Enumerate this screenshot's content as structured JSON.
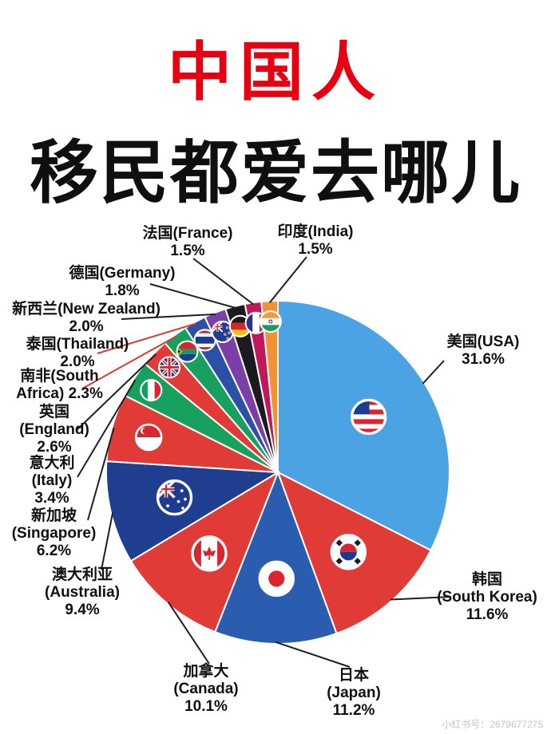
{
  "header": {
    "title_line1": "中国人",
    "title_line2": "移民都爱去哪儿",
    "title_color": "#e60012"
  },
  "watermark": "小红书号：2679677275",
  "chart_data": {
    "type": "pie",
    "title": "中国人移民都爱去哪儿",
    "unit": "%",
    "start_angle_deg": -90,
    "direction": "clockwise",
    "legend_position": "none",
    "slices": [
      {
        "id": "usa",
        "name_zh": "美国",
        "name_en": "USA",
        "value": 31.6,
        "color": "#4BA3E3",
        "flag": "usa",
        "label_text": "美国(USA)\n31.6%"
      },
      {
        "id": "south-korea",
        "name_zh": "韩国",
        "name_en": "South Korea",
        "value": 11.6,
        "color": "#E03B36",
        "flag": "kor",
        "label_text": "韩国\n(South Korea)\n11.6%"
      },
      {
        "id": "japan",
        "name_zh": "日本",
        "name_en": "Japan",
        "value": 11.2,
        "color": "#2A5DB0",
        "flag": "jpn",
        "label_text": "日本\n(Japan)\n11.2%"
      },
      {
        "id": "canada",
        "name_zh": "加拿大",
        "name_en": "Canada",
        "value": 10.1,
        "color": "#E03B36",
        "flag": "can",
        "label_text": "加拿大\n(Canada)\n10.1%"
      },
      {
        "id": "australia",
        "name_zh": "澳大利亚",
        "name_en": "Australia",
        "value": 9.4,
        "color": "#1F3E8F",
        "flag": "aus",
        "label_text": "澳大利亚\n(Australia)\n9.4%"
      },
      {
        "id": "singapore",
        "name_zh": "新加坡",
        "name_en": "Singapore",
        "value": 6.2,
        "color": "#E03B36",
        "flag": "sgp",
        "label_text": "新加坡\n(Singapore)\n6.2%"
      },
      {
        "id": "italy",
        "name_zh": "意大利",
        "name_en": "Italy",
        "value": 3.4,
        "color": "#18A05E",
        "flag": "ita",
        "label_text": "意大利\n(Italy)\n3.4%"
      },
      {
        "id": "england",
        "name_zh": "英国",
        "name_en": "England",
        "value": 2.6,
        "color": "#E03B36",
        "flag": "gbr",
        "label_text": "英国\n(England)\n2.6%"
      },
      {
        "id": "south-africa",
        "name_zh": "南非",
        "name_en": "South Africa",
        "value": 2.3,
        "color": "#18A05E",
        "flag": "zaf",
        "line_color": "#d63a31",
        "label_text": "南非(South\nAfrica) 2.3%"
      },
      {
        "id": "thailand",
        "name_zh": "泰国",
        "name_en": "Thailand",
        "value": 2.0,
        "color": "#2C50A5",
        "flag": "tha",
        "line_color": "#d63a31",
        "label_text": "泰国(Thailand)\n2.0%"
      },
      {
        "id": "new-zealand",
        "name_zh": "新西兰",
        "name_en": "New Zealand",
        "value": 2.0,
        "color": "#7C3FA8",
        "flag": "nzl",
        "label_text": "新西兰(New Zealand)\n2.0%"
      },
      {
        "id": "germany",
        "name_zh": "德国",
        "name_en": "Germany",
        "value": 1.8,
        "color": "#1B1B1F",
        "flag": "deu",
        "label_text": "德国(Germany)\n1.8%"
      },
      {
        "id": "france",
        "name_zh": "法国",
        "name_en": "France",
        "value": 1.5,
        "color": "#C2185B",
        "flag": "fra",
        "label_text": "法国(France)\n1.5%"
      },
      {
        "id": "india",
        "name_zh": "印度",
        "name_en": "India",
        "value": 1.5,
        "color": "#F09235",
        "flag": "ind",
        "label_text": "印度(India)\n1.5%"
      }
    ]
  }
}
